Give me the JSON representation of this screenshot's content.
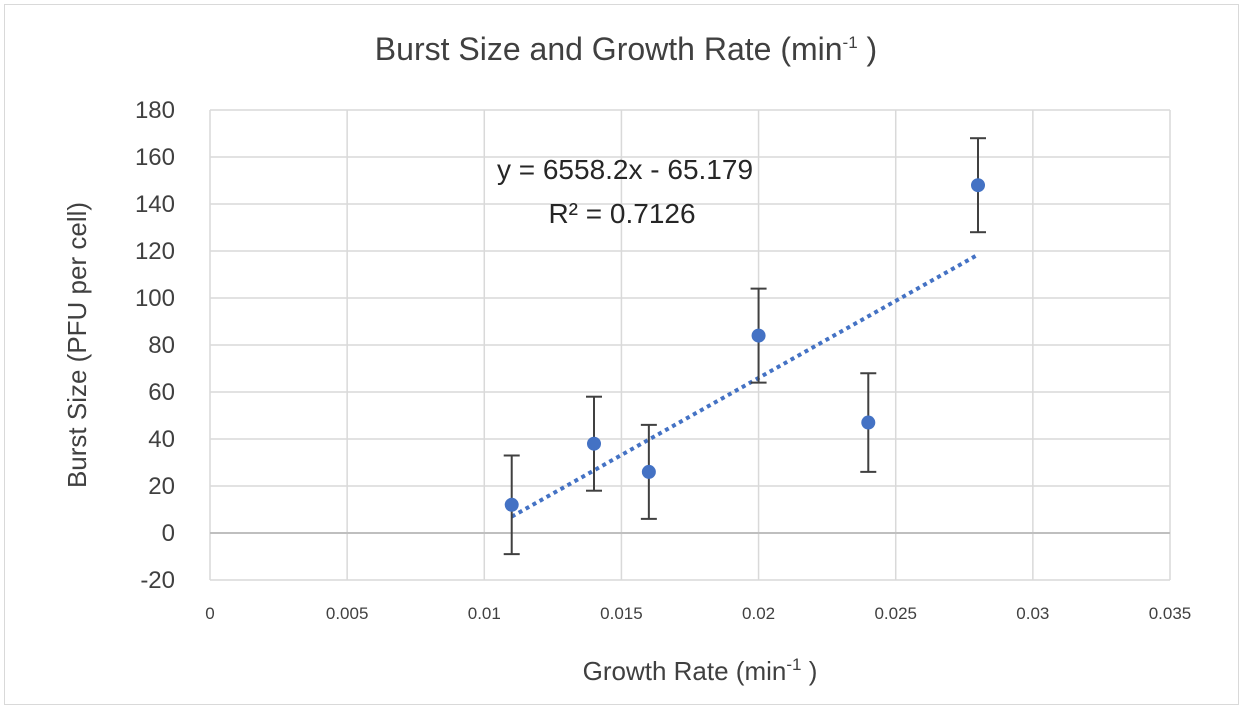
{
  "chart_data": {
    "type": "scatter",
    "title": "Burst Size and Growth Rate (min",
    "title_sup": "-1",
    "title_close": " )",
    "xlabel": "Growth Rate (min",
    "xlabel_sup": "-1",
    "xlabel_close": " )",
    "ylabel": "Burst Size (PFU per cell)",
    "xlim": [
      0,
      0.035
    ],
    "ylim": [
      -20,
      180
    ],
    "x_ticks": [
      "0",
      "0.005",
      "0.01",
      "0.015",
      "0.02",
      "0.025",
      "0.03",
      "0.035"
    ],
    "y_ticks": [
      "-20",
      "0",
      "20",
      "40",
      "60",
      "80",
      "100",
      "120",
      "140",
      "160",
      "180"
    ],
    "grid": true,
    "series": [
      {
        "points": [
          {
            "x": 0.011,
            "y": 12,
            "err": 21
          },
          {
            "x": 0.014,
            "y": 38,
            "err": 20
          },
          {
            "x": 0.016,
            "y": 26,
            "err": 20
          },
          {
            "x": 0.02,
            "y": 84,
            "err": 20
          },
          {
            "x": 0.024,
            "y": 47,
            "err": 21
          },
          {
            "x": 0.028,
            "y": 148,
            "err": 20
          }
        ],
        "color": "#4472c4"
      }
    ],
    "trendline": {
      "type": "linear",
      "slope": 6558.2,
      "intercept": -65.179,
      "x_range": [
        0.011,
        0.028
      ],
      "color": "#4472c4",
      "equation": "y = 6558.2x - 65.179",
      "r_squared": "R² = 0.7126"
    }
  }
}
